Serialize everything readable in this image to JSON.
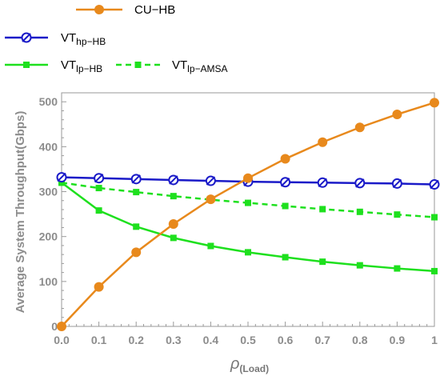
{
  "chart_data": {
    "type": "line",
    "title": "",
    "xlabel": "ρ",
    "xlabel_sub": "(Load)",
    "ylabel": "Average System Throughput(Gbps)",
    "xlim": [
      0,
      1
    ],
    "ylim": [
      0,
      520
    ],
    "x_ticks": [
      0.0,
      0.1,
      0.2,
      0.3,
      0.4,
      0.5,
      0.6,
      0.7,
      0.8,
      0.9,
      1.0
    ],
    "x_tick_labels": [
      "0.0",
      "0.1",
      "0.2",
      "0.3",
      "0.4",
      "0.5",
      "0.6",
      "0.7",
      "0.8",
      "0.9",
      "1"
    ],
    "y_ticks": [
      0,
      100,
      200,
      300,
      400,
      500
    ],
    "y_tick_labels": [
      "0",
      "100",
      "200",
      "300",
      "400",
      "500"
    ],
    "grid": false,
    "legend_position": "top-left",
    "x": [
      0.0,
      0.1,
      0.2,
      0.3,
      0.4,
      0.5,
      0.6,
      0.7,
      0.8,
      0.9,
      1.0
    ],
    "series": [
      {
        "name": "CU−HB",
        "name_main": "CU−HB",
        "name_sub": "",
        "color": "#e8891c",
        "marker": "filled-circle",
        "dash": "solid",
        "values": [
          0,
          88,
          165,
          228,
          283,
          330,
          373,
          410,
          443,
          472,
          498
        ]
      },
      {
        "name": "VThp−HB",
        "name_main": "VT",
        "name_sub": "hp−HB",
        "color": "#1a1ac8",
        "marker": "slashed-circle",
        "dash": "solid",
        "values": [
          332,
          330,
          328,
          326,
          324,
          322,
          321,
          320,
          319,
          318,
          316
        ]
      },
      {
        "name": "VTlp−HB",
        "name_main": "VT",
        "name_sub": "lp−HB",
        "color": "#1ee01e",
        "marker": "square",
        "dash": "solid",
        "values": [
          320,
          258,
          222,
          197,
          179,
          165,
          154,
          144,
          136,
          129,
          123
        ]
      },
      {
        "name": "VTlp−AMSA",
        "name_main": "VT",
        "name_sub": "lp−AMSA",
        "color": "#1ee01e",
        "marker": "square",
        "dash": "dashed",
        "values": [
          320,
          308,
          299,
          290,
          282,
          275,
          268,
          261,
          255,
          249,
          243
        ]
      }
    ]
  }
}
